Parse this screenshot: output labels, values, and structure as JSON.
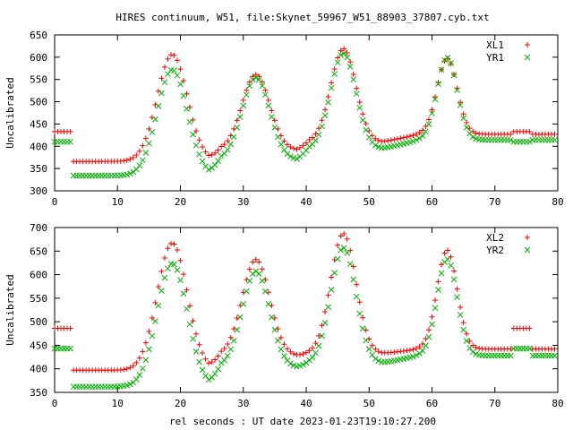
{
  "title": "HIRES continuum, W51, file:Skynet_59967_W51_88903_37807.cyb.txt",
  "xlabel": "rel seconds : UT date 2023-01-23T19:10:27.200",
  "colors": {
    "series_a": "#ff0000",
    "series_b": "#00b000",
    "axis": "#000000",
    "grid": "#000000",
    "background": "#ffffff"
  },
  "chart_data": [
    {
      "type": "scatter",
      "ylabel": "Uncalibrated",
      "xlim": [
        0,
        80
      ],
      "ylim": [
        300,
        650
      ],
      "x_ticks": [
        0,
        10,
        20,
        30,
        40,
        50,
        60,
        70,
        80
      ],
      "y_ticks": [
        300,
        350,
        400,
        450,
        500,
        550,
        600,
        650
      ],
      "grid": false,
      "legend_position": "top-right",
      "model": {
        "dt": 0.5,
        "gap_regions": [
          {
            "x_start": 0,
            "x_end": 2.5,
            "XL1": 433,
            "YR1": 410
          },
          {
            "x_start": 73,
            "x_end": 75.5,
            "XL1": 433,
            "YR1": 410
          }
        ],
        "base_segments": [
          {
            "x_start": 3,
            "x_end": 12,
            "XL1": 366,
            "YR1": 334
          },
          {
            "x_start": 12,
            "x_end": 73,
            "XL1": 366,
            "YR1": 334
          },
          {
            "x_start": 76,
            "x_end": 79.5,
            "XL1": 366,
            "YR1": 334
          }
        ],
        "peaks": [
          {
            "center": 18.7,
            "width": 2.4,
            "XL1": 240,
            "YR1": 238
          },
          {
            "center": 32.0,
            "width": 2.2,
            "XL1": 170,
            "YR1": 185
          },
          {
            "center": 45.9,
            "width": 2.0,
            "XL1": 210,
            "YR1": 215
          },
          {
            "center": 62.4,
            "width": 1.6,
            "XL1": 170,
            "YR1": 185
          }
        ],
        "ramps": [
          {
            "from": 24.5,
            "to": 26.5,
            "XL1": 25,
            "YR1": 35
          },
          {
            "from": 38.5,
            "to": 40.5,
            "XL1": 18,
            "YR1": 25
          },
          {
            "from": 52,
            "to": 58,
            "XL1": 18,
            "YR1": 20
          }
        ]
      },
      "series": [
        {
          "name": "XL1",
          "marker": "plus",
          "color": "#ff0000"
        },
        {
          "name": "YR1",
          "marker": "cross",
          "color": "#00b000"
        }
      ]
    },
    {
      "type": "scatter",
      "ylabel": "Uncalibrated",
      "xlim": [
        0,
        80
      ],
      "ylim": [
        350,
        700
      ],
      "x_ticks": [
        0,
        10,
        20,
        30,
        40,
        50,
        60,
        70,
        80
      ],
      "y_ticks": [
        350,
        400,
        450,
        500,
        550,
        600,
        650,
        700
      ],
      "grid": false,
      "legend_position": "top-right",
      "model": {
        "dt": 0.5,
        "gap_regions": [
          {
            "x_start": 0,
            "x_end": 2.5,
            "XL2": 486,
            "YR2": 443
          },
          {
            "x_start": 73,
            "x_end": 75.5,
            "XL2": 486,
            "YR2": 443
          }
        ],
        "base_segments": [
          {
            "x_start": 3,
            "x_end": 12,
            "XL2": 397,
            "YR2": 362
          },
          {
            "x_start": 12,
            "x_end": 73,
            "XL2": 397,
            "YR2": 362
          },
          {
            "x_start": 76,
            "x_end": 79.5,
            "XL2": 397,
            "YR2": 362
          }
        ],
        "peaks": [
          {
            "center": 18.7,
            "width": 2.4,
            "XL2": 270,
            "YR2": 262
          },
          {
            "center": 32.0,
            "width": 2.2,
            "XL2": 205,
            "YR2": 205
          },
          {
            "center": 45.9,
            "width": 2.0,
            "XL2": 255,
            "YR2": 245
          },
          {
            "center": 62.4,
            "width": 1.6,
            "XL2": 210,
            "YR2": 205
          }
        ],
        "ramps": [
          {
            "from": 24.5,
            "to": 26.5,
            "XL2": 30,
            "YR2": 40
          },
          {
            "from": 38.5,
            "to": 40.5,
            "XL2": 5,
            "YR2": 10
          },
          {
            "from": 52,
            "to": 58,
            "XL2": 10,
            "YR2": 16
          }
        ]
      },
      "series": [
        {
          "name": "XL2",
          "marker": "plus",
          "color": "#ff0000"
        },
        {
          "name": "YR2",
          "marker": "cross",
          "color": "#00b000"
        }
      ]
    }
  ]
}
